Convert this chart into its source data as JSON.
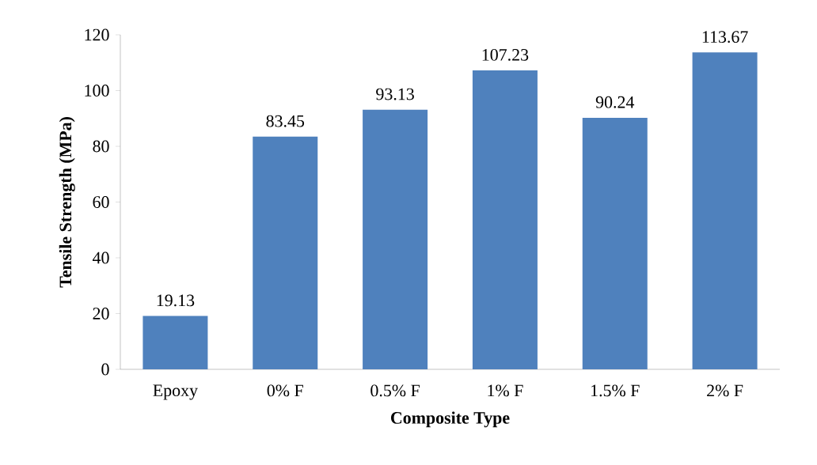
{
  "chart_data": {
    "type": "bar",
    "xlabel": "Composite Type",
    "ylabel": "Tensile Strength (MPa)",
    "categories": [
      "Epoxy",
      "0% F",
      "0.5% F",
      "1% F",
      "1.5% F",
      "2% F"
    ],
    "values": [
      19.13,
      83.45,
      93.13,
      107.23,
      90.24,
      113.67
    ],
    "value_labels": [
      "19.13",
      "83.45",
      "93.13",
      "107.23",
      "90.24",
      "113.67"
    ],
    "color": "#4f81bd",
    "ylim": [
      0,
      120
    ],
    "yticks": [
      0,
      20,
      40,
      60,
      80,
      100,
      120
    ]
  }
}
